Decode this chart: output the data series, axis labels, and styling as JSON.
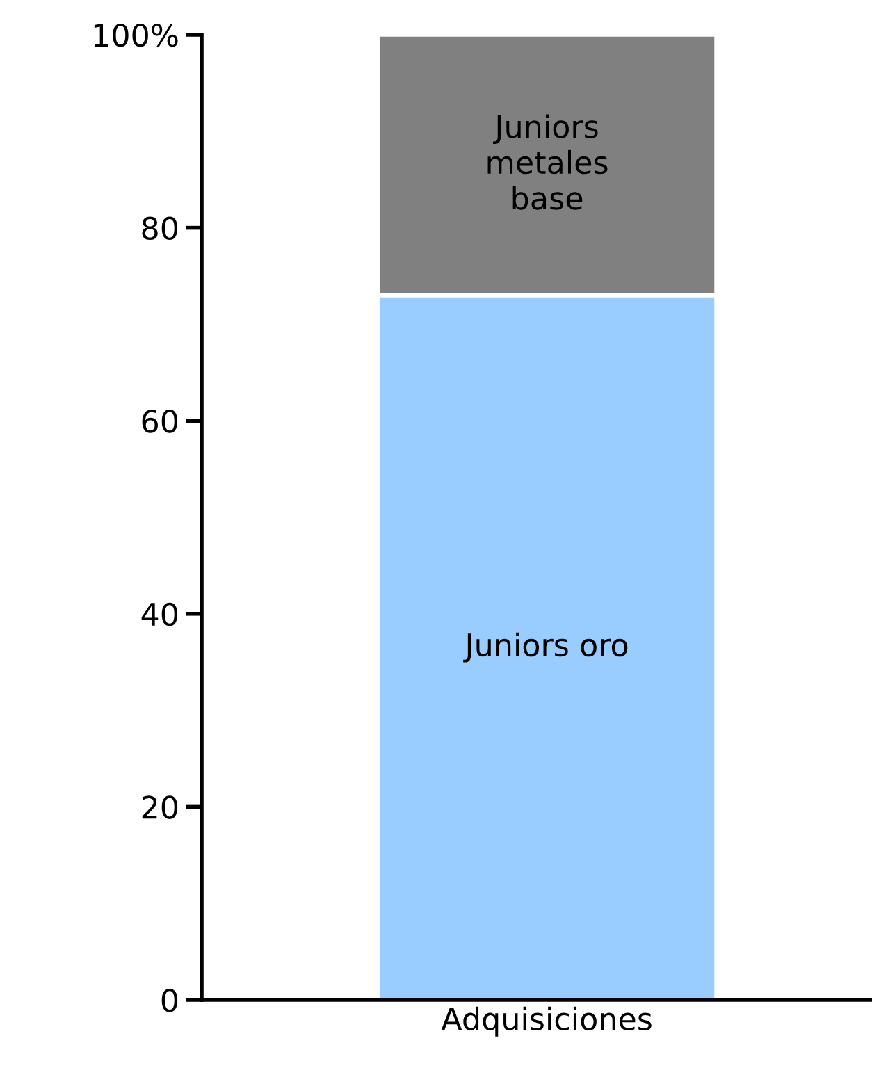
{
  "chart_data": {
    "type": "bar",
    "stacked": true,
    "categories": [
      "Adquisiciones"
    ],
    "series": [
      {
        "name": "Juniors oro",
        "color": "#99ccff",
        "values": [
          73
        ]
      },
      {
        "name": "Juniors\nmetales\nbase",
        "color": "#808080",
        "values": [
          27
        ]
      }
    ],
    "ylim": [
      0,
      100
    ],
    "yticks": [
      0,
      20,
      40,
      60,
      80,
      {
        "value": 100,
        "label": "100%"
      }
    ],
    "grid": false,
    "legend": false
  }
}
